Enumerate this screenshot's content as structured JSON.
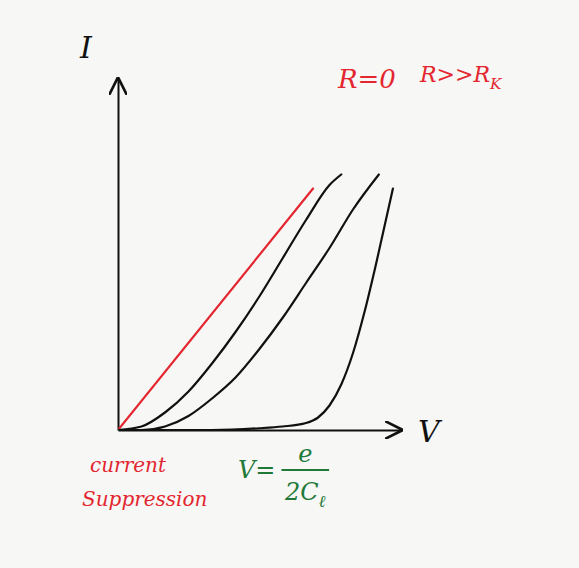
{
  "chart_data": {
    "type": "line",
    "x_label": "V",
    "y_label": "I",
    "xlim": [
      0,
      12
    ],
    "ylim": [
      0,
      10
    ],
    "xticks": [],
    "yticks": [],
    "tick_labels": false,
    "grid": false,
    "series": [
      {
        "color": "#e3262f",
        "line_style": "solid",
        "x": [
          0,
          8.3
        ],
        "values": [
          0,
          6.9
        ]
      },
      {
        "color": "#111111",
        "line_style": "solid",
        "x": [
          0,
          1,
          2,
          3,
          4,
          5,
          6,
          7,
          8,
          9,
          9.5
        ],
        "values": [
          0,
          0.1,
          0.5,
          1.1,
          1.9,
          2.8,
          3.8,
          4.9,
          6.0,
          7.0,
          7.3
        ]
      },
      {
        "color": "#111111",
        "line_style": "solid",
        "x": [
          0,
          1,
          2,
          3,
          4,
          5,
          6,
          7,
          8,
          9,
          10,
          11.1
        ],
        "values": [
          0,
          0,
          0.1,
          0.4,
          0.9,
          1.5,
          2.3,
          3.2,
          4.2,
          5.2,
          6.3,
          7.3
        ]
      },
      {
        "color": "#111111",
        "line_style": "solid",
        "x": [
          0,
          2,
          4,
          6,
          7,
          8,
          8.5,
          9,
          9.5,
          10,
          10.5,
          11,
          11.7
        ],
        "values": [
          0,
          0,
          0,
          0.05,
          0.1,
          0.2,
          0.35,
          0.7,
          1.3,
          2.2,
          3.4,
          4.8,
          6.9
        ]
      }
    ],
    "annotations": [
      {
        "text": "R=0",
        "color": "#e3262f"
      },
      {
        "text": "R>>R",
        "sub": "K",
        "color": "#e3262f"
      },
      {
        "text": "current",
        "color": "#e3262f"
      },
      {
        "text": "Suppression",
        "color": "#e3262f"
      },
      {
        "text": "V=",
        "numerator": "e",
        "denominator": "2C",
        "denominator_sub": "ℓ",
        "color": "#1f7a3a"
      }
    ]
  }
}
